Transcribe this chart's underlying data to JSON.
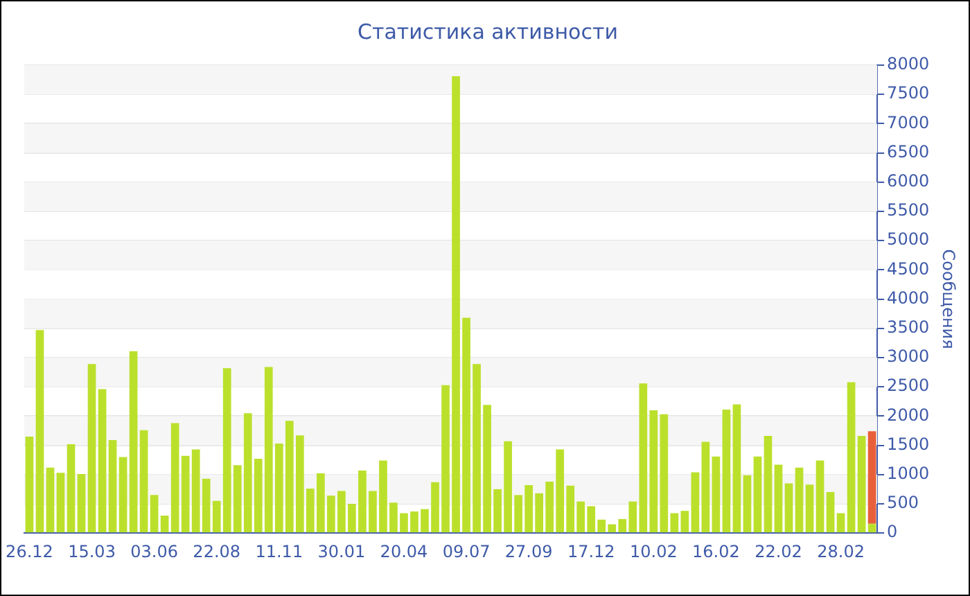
{
  "chart_data": {
    "type": "bar",
    "title": "Статистика активности",
    "ylabel": "Сообщения",
    "stacked": true,
    "grid": "y",
    "legend": false,
    "categories": [
      "26.12",
      null,
      null,
      null,
      null,
      null,
      "15.03",
      null,
      null,
      null,
      null,
      null,
      "03.06",
      null,
      null,
      null,
      null,
      null,
      "22.08",
      null,
      null,
      null,
      null,
      null,
      "11.11",
      null,
      null,
      null,
      null,
      null,
      "30.01",
      null,
      null,
      null,
      null,
      null,
      "20.04",
      null,
      null,
      null,
      null,
      null,
      "09.07",
      null,
      null,
      null,
      null,
      null,
      "27.09",
      null,
      null,
      null,
      null,
      null,
      "17.12",
      null,
      null,
      null,
      null,
      null,
      "10.02",
      null,
      null,
      null,
      null,
      null,
      "16.02",
      null,
      null,
      null,
      null,
      null,
      "22.02",
      null,
      null,
      null,
      null,
      null,
      "28.02",
      null,
      null,
      null
    ],
    "ylim": [
      0,
      8000
    ],
    "yticks": [
      0,
      500,
      1000,
      1500,
      2000,
      2500,
      3000,
      3500,
      4000,
      4500,
      5000,
      5500,
      6000,
      6500,
      7000,
      7500,
      8000
    ],
    "series": [
      {
        "color": "#bbe02c",
        "values": [
          1650,
          3470,
          1120,
          1030,
          1520,
          1010,
          2890,
          2460,
          1590,
          1300,
          3110,
          1760,
          650,
          300,
          1880,
          1320,
          1430,
          930,
          550,
          2820,
          1160,
          2050,
          1270,
          2840,
          1530,
          1920,
          1670,
          760,
          1020,
          640,
          720,
          500,
          1070,
          720,
          1240,
          520,
          340,
          370,
          410,
          870,
          2530,
          7810,
          3680,
          2890,
          2190,
          750,
          1570,
          650,
          820,
          680,
          880,
          1430,
          810,
          540,
          460,
          230,
          150,
          240,
          540,
          2560,
          2100,
          2030,
          340,
          380,
          1040,
          1560,
          1310,
          2110,
          2200,
          990,
          1310,
          1660,
          1170,
          850,
          1120,
          830,
          1240,
          700,
          340,
          2580,
          1660,
          160
        ]
      },
      {
        "color": "#e8603a",
        "values": [
          null,
          null,
          null,
          null,
          null,
          null,
          null,
          null,
          null,
          null,
          null,
          null,
          null,
          null,
          null,
          null,
          null,
          null,
          null,
          null,
          null,
          null,
          null,
          null,
          null,
          null,
          null,
          null,
          null,
          null,
          null,
          null,
          null,
          null,
          null,
          null,
          null,
          null,
          null,
          null,
          null,
          null,
          null,
          null,
          null,
          null,
          null,
          null,
          null,
          null,
          null,
          null,
          null,
          null,
          null,
          null,
          null,
          null,
          null,
          null,
          null,
          null,
          null,
          null,
          null,
          null,
          null,
          null,
          null,
          null,
          null,
          null,
          null,
          null,
          null,
          null,
          null,
          null,
          null,
          null,
          null,
          1580
        ]
      }
    ]
  }
}
